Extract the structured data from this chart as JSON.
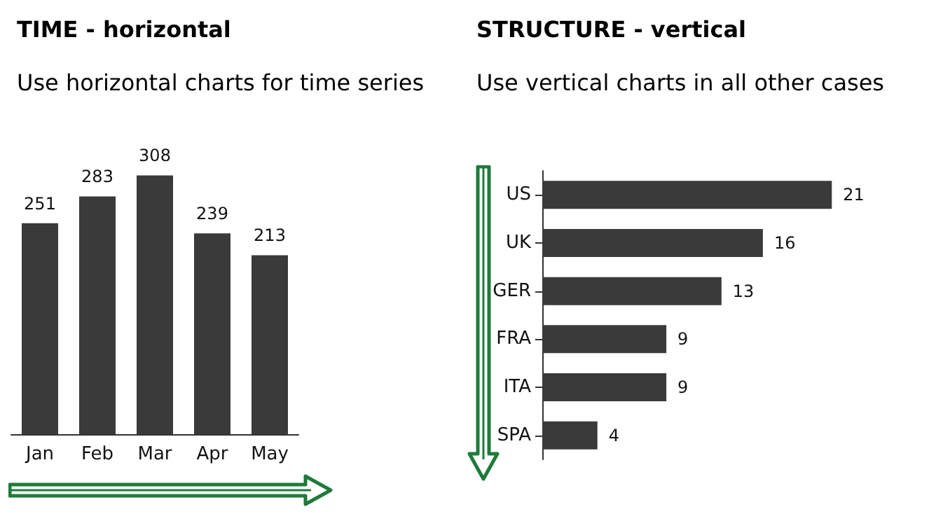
{
  "chart_data": [
    {
      "type": "bar",
      "title": "TIME - horizontal",
      "subtitle": "Use horizontal charts for time series",
      "categories": [
        "Jan",
        "Feb",
        "Mar",
        "Apr",
        "May"
      ],
      "values": [
        251,
        283,
        308,
        239,
        213
      ],
      "color": "#3a3a3a",
      "data_labels": true,
      "tick_labels": "x",
      "grid": false
    },
    {
      "type": "bar",
      "orientation": "horizontal",
      "title": "STRUCTURE - vertical",
      "subtitle": "Use vertical charts in all other cases",
      "categories": [
        "US",
        "UK",
        "GER",
        "FRA",
        "ITA",
        "SPA"
      ],
      "values": [
        21,
        16,
        13,
        9,
        9,
        4
      ],
      "color": "#3a3a3a",
      "data_labels": true,
      "tick_labels": "y",
      "grid": false
    }
  ]
}
